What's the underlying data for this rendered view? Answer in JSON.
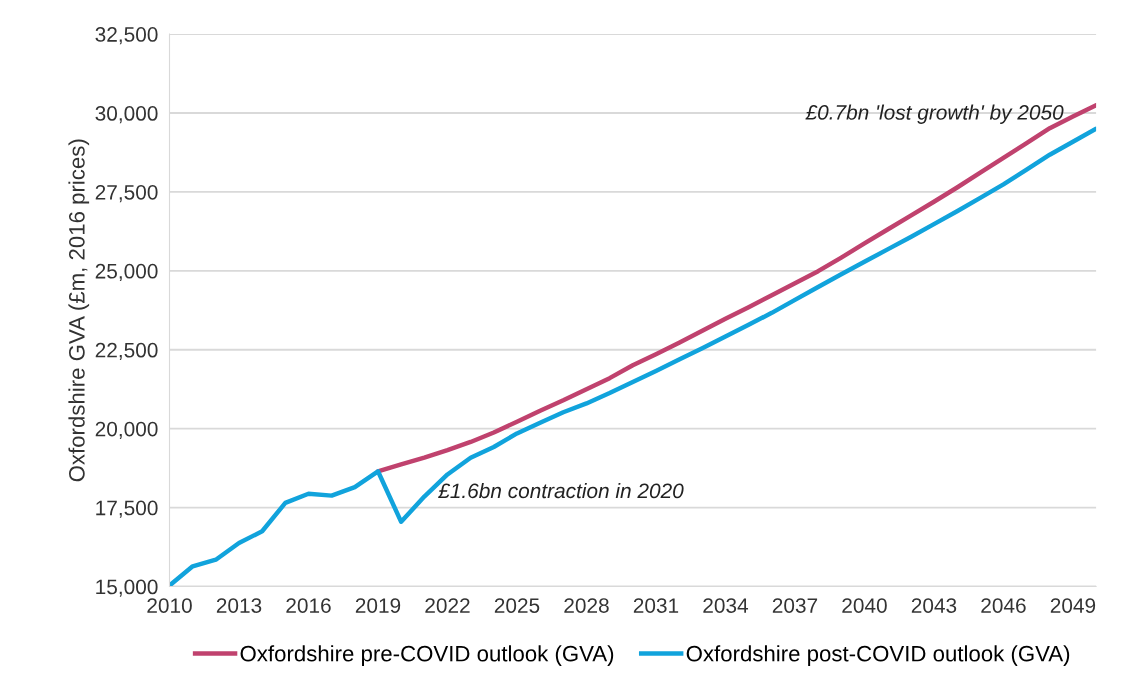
{
  "chart_data": {
    "type": "line",
    "ylabel": "Oxfordshire GVA (£m, 2016 prices)",
    "x": [
      2010,
      2011,
      2012,
      2013,
      2014,
      2015,
      2016,
      2017,
      2018,
      2019,
      2020,
      2021,
      2022,
      2023,
      2024,
      2025,
      2026,
      2027,
      2028,
      2029,
      2030,
      2031,
      2032,
      2033,
      2034,
      2035,
      2036,
      2037,
      2038,
      2039,
      2040,
      2041,
      2042,
      2043,
      2044,
      2045,
      2046,
      2047,
      2048,
      2049,
      2050
    ],
    "series": [
      {
        "name": "Oxfordshire pre-COVID outlook (GVA)",
        "color": "#c0426e",
        "values": [
          null,
          null,
          null,
          null,
          null,
          null,
          null,
          null,
          null,
          18650,
          18870,
          19080,
          19320,
          19580,
          19880,
          20220,
          20570,
          20900,
          21250,
          21600,
          22010,
          22360,
          22720,
          23100,
          23480,
          23850,
          24230,
          24610,
          24990,
          25420,
          25870,
          26310,
          26750,
          27190,
          27640,
          28110,
          28580,
          29050,
          29520,
          29890,
          30250
        ]
      },
      {
        "name": "Oxfordshire post-COVID outlook (GVA)",
        "color": "#11a3dc",
        "values": [
          15030,
          15640,
          15850,
          16380,
          16750,
          17650,
          17940,
          17880,
          18150,
          18650,
          17050,
          17850,
          18550,
          19080,
          19420,
          19850,
          20190,
          20520,
          20800,
          21130,
          21480,
          21830,
          22190,
          22550,
          22920,
          23290,
          23670,
          24080,
          24490,
          24890,
          25290,
          25680,
          26070,
          26480,
          26890,
          27310,
          27740,
          28210,
          28680,
          29090,
          29500
        ]
      }
    ],
    "xlim": [
      2010,
      2050
    ],
    "xticks": [
      2010,
      2013,
      2016,
      2019,
      2022,
      2025,
      2028,
      2031,
      2034,
      2037,
      2040,
      2043,
      2046,
      2049
    ],
    "ylim": [
      15000,
      32500
    ],
    "yticks": [
      {
        "value": 15000,
        "label": "15,000"
      },
      {
        "value": 17500,
        "label": "17,500"
      },
      {
        "value": 20000,
        "label": "20,000"
      },
      {
        "value": 22500,
        "label": "22,500"
      },
      {
        "value": 25000,
        "label": "25,000"
      },
      {
        "value": 27500,
        "label": "27,500"
      },
      {
        "value": 30000,
        "label": "30,000"
      },
      {
        "value": 32500,
        "label": "32,500"
      }
    ],
    "grid": "y",
    "legend": "bottom",
    "marker": "none",
    "line_style": "solid",
    "annotations": [
      "£1.6bn contraction in 2020",
      "£0.7bn 'lost growth' by 2050"
    ]
  }
}
